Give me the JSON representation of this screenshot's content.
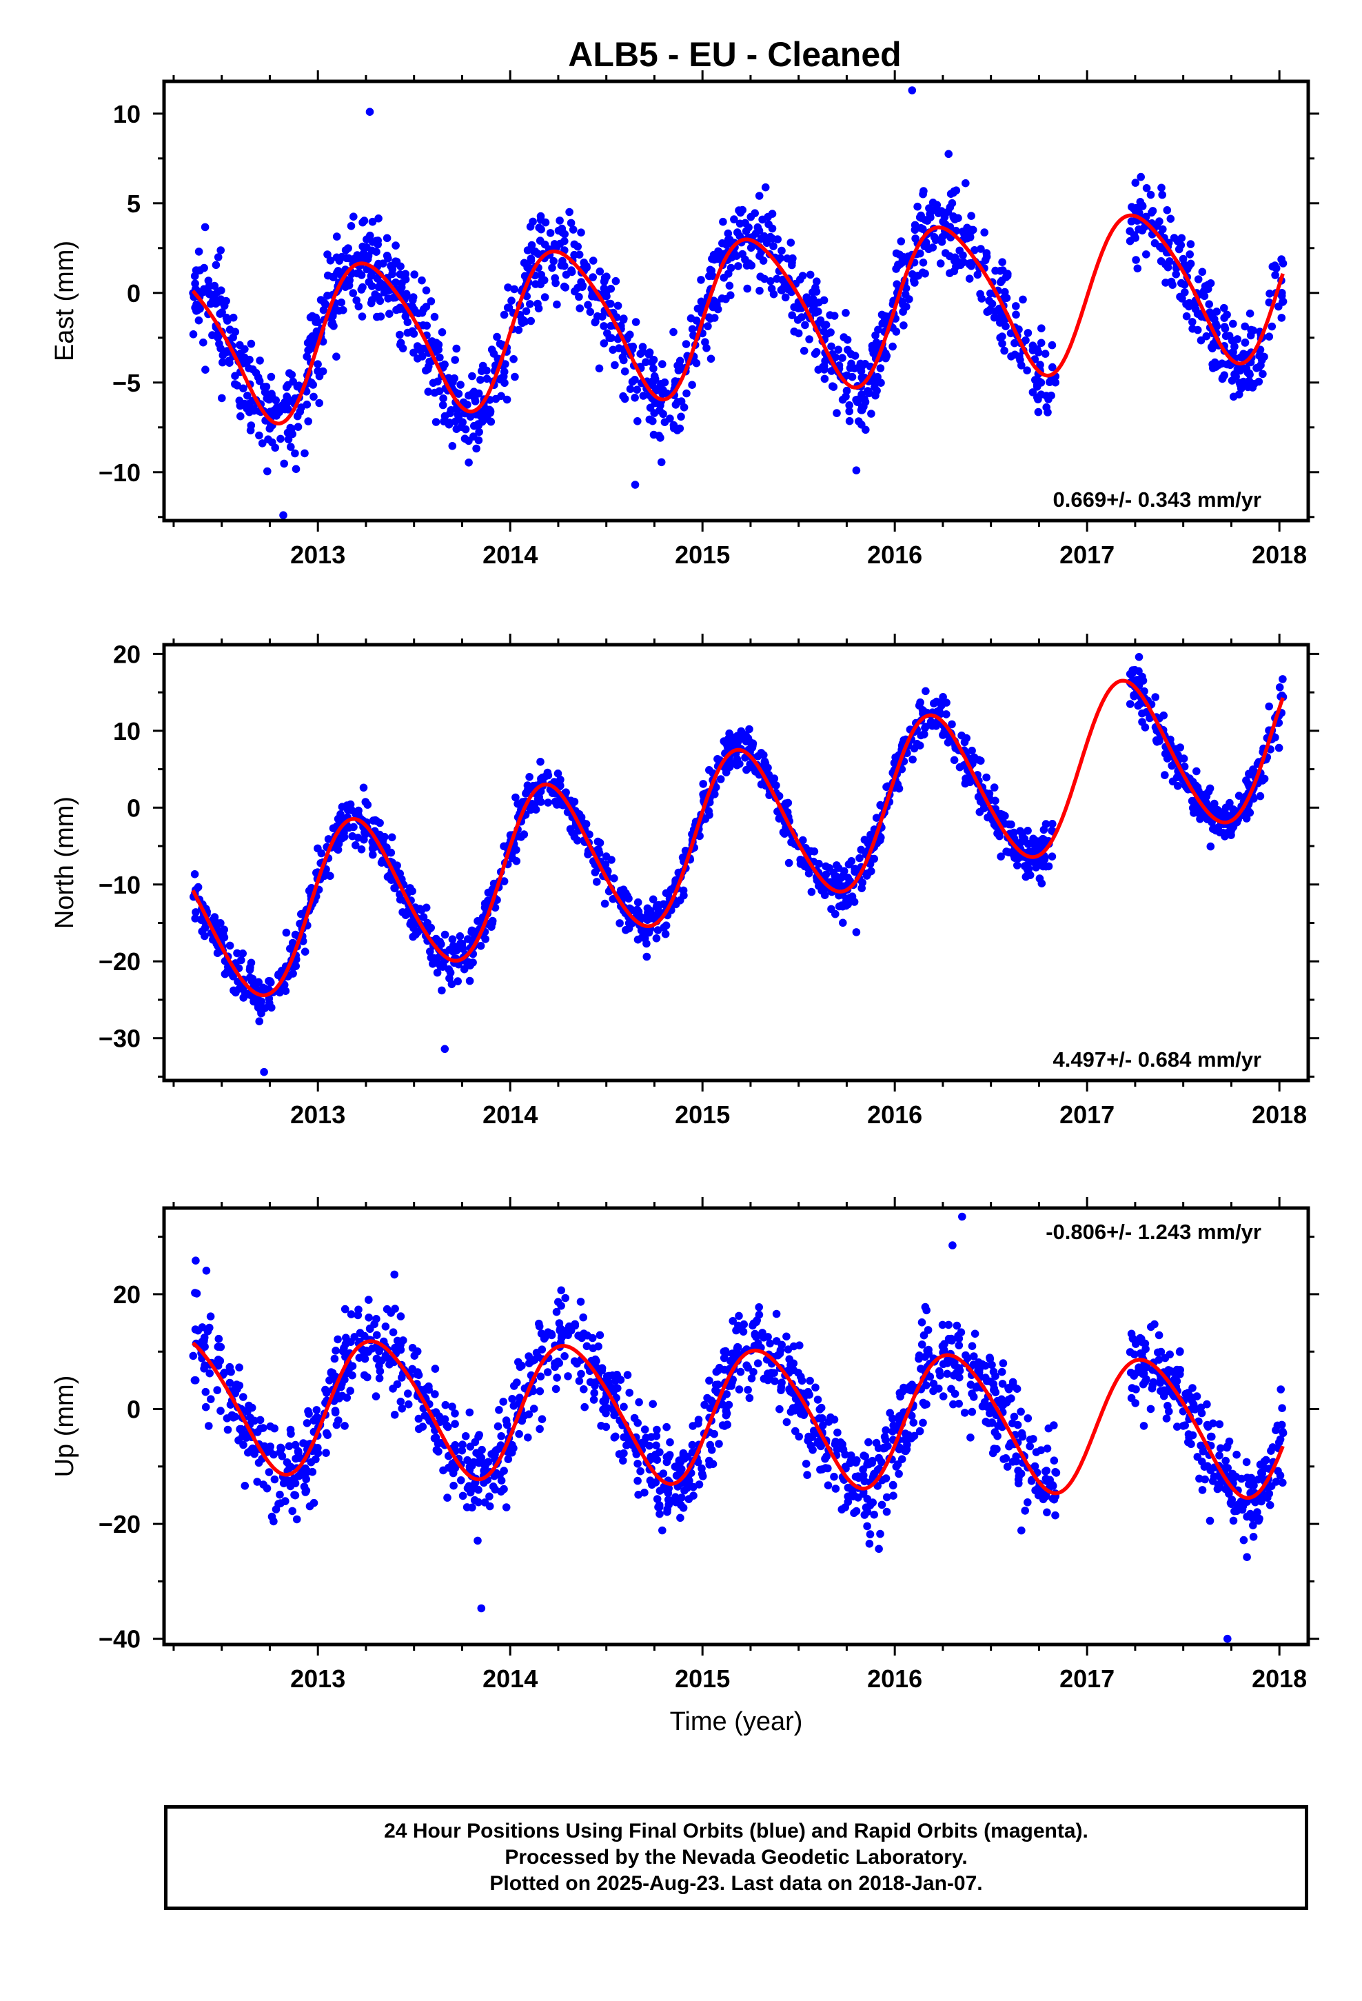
{
  "title": "ALB5  - EU - Cleaned",
  "footer": {
    "line1": "24 Hour Positions Using Final Orbits (blue) and Rapid Orbits (magenta).",
    "line2": "Processed by the Nevada Geodetic Laboratory.",
    "line3": "Plotted on 2025-Aug-23. Last data on 2018-Jan-07."
  },
  "colors": {
    "points": "#0000ff",
    "model": "#ff0000",
    "axes": "#000000"
  },
  "chart_data": [
    {
      "type": "scatter",
      "ylabel": "East (mm)",
      "xlabel": "",
      "rate_label": "0.669+/- 0.343 mm/yr",
      "rate_position": "bottom-right",
      "xlim": [
        2012.2,
        2018.15
      ],
      "ylim": [
        -12.7,
        11.8
      ],
      "x_ticks": [
        2013,
        2014,
        2015,
        2016,
        2017,
        2018
      ],
      "y_ticks": [
        -10,
        -5,
        0,
        5,
        10
      ],
      "y_tick_labels": [
        "−10",
        "−5",
        "0",
        "5",
        "10"
      ],
      "data_range": [
        2012.35,
        2018.02
      ],
      "gaps": [
        [
          2016.84,
          2017.22
        ]
      ],
      "series": [
        {
          "kind": "daily-positions",
          "points_per_year": 300,
          "scatter_sd": 1.3,
          "outliers": [
            [
              2016.09,
              11.3
            ],
            [
              2013.27,
              10.1
            ],
            [
              2012.82,
              -12.4
            ],
            [
              2014.65,
              -10.7
            ],
            [
              2015.8,
              -9.9
            ]
          ]
        },
        {
          "kind": "model-curve",
          "rate": 0.669,
          "ref_epoch": 2015.0,
          "offset": -1.2,
          "annual_amplitude": 4.2,
          "annual_peak": 0.27,
          "semiannual_amplitude": 0.6,
          "semiannual_peak": 0.1
        }
      ]
    },
    {
      "type": "scatter",
      "ylabel": "North (mm)",
      "xlabel": "",
      "rate_label": "4.497+/- 0.684 mm/yr",
      "rate_position": "bottom-right",
      "xlim": [
        2012.2,
        2018.15
      ],
      "ylim": [
        -35.5,
        21.2
      ],
      "x_ticks": [
        2013,
        2014,
        2015,
        2016,
        2017,
        2018
      ],
      "y_ticks": [
        -30,
        -20,
        -10,
        0,
        10,
        20
      ],
      "y_tick_labels": [
        "−30",
        "−20",
        "−10",
        "0",
        "10",
        "20"
      ],
      "data_range": [
        2012.35,
        2018.02
      ],
      "gaps": [
        [
          2016.84,
          2017.22
        ]
      ],
      "series": [
        {
          "kind": "daily-positions",
          "points_per_year": 300,
          "scatter_sd": 1.5,
          "outliers": [
            [
              2012.72,
              -34.4
            ],
            [
              2013.66,
              -31.4
            ],
            [
              2015.8,
              -16.2
            ],
            [
              2017.27,
              19.6
            ]
          ]
        },
        {
          "kind": "model-curve",
          "rate": 4.497,
          "ref_epoch": 2015.0,
          "offset": -4.0,
          "annual_amplitude": 10.3,
          "annual_peak": 0.2,
          "semiannual_amplitude": 0.9,
          "semiannual_peak": 0.1
        }
      ]
    },
    {
      "type": "scatter",
      "ylabel": "Up (mm)",
      "xlabel": "Time (year)",
      "rate_label": "-0.806+/- 1.243 mm/yr",
      "rate_position": "top-right",
      "xlim": [
        2012.2,
        2018.15
      ],
      "ylim": [
        -41,
        35
      ],
      "x_ticks": [
        2013,
        2014,
        2015,
        2016,
        2017,
        2018
      ],
      "y_ticks": [
        -40,
        -20,
        0,
        20
      ],
      "y_tick_labels": [
        "−40",
        "−20",
        "0",
        "20"
      ],
      "data_range": [
        2012.35,
        2018.02
      ],
      "gaps": [
        [
          2016.84,
          2017.22
        ]
      ],
      "series": [
        {
          "kind": "daily-positions",
          "points_per_year": 300,
          "scatter_sd": 4.2,
          "outliers": [
            [
              2016.35,
              33.5
            ],
            [
              2016.3,
              28.5
            ],
            [
              2017.73,
              -40.0
            ],
            [
              2013.85,
              -34.7
            ],
            [
              2012.42,
              24.1
            ]
          ]
        },
        {
          "kind": "model-curve",
          "rate": -0.806,
          "ref_epoch": 2015.0,
          "offset": -0.9,
          "annual_amplitude": 11.6,
          "annual_peak": 0.31,
          "semiannual_amplitude": 1.2,
          "semiannual_peak": 0.15
        }
      ]
    }
  ]
}
